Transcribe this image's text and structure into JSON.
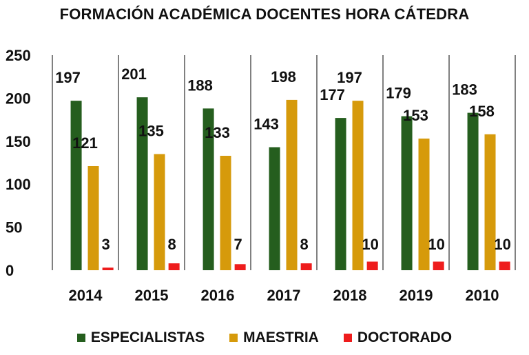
{
  "chart_data": {
    "type": "bar",
    "title": "FORMACIÓN ACADÉMICA DOCENTES HORA CÁTEDRA",
    "categories": [
      "2014",
      "2015",
      "2016",
      "2017",
      "2018",
      "2019",
      "2010"
    ],
    "series": [
      {
        "name": "ESPECIALISTAS",
        "color": "#255e1e",
        "values": [
          197,
          201,
          188,
          143,
          177,
          179,
          183
        ]
      },
      {
        "name": "MAESTRIA",
        "color": "#d69a0b",
        "values": [
          121,
          135,
          133,
          198,
          197,
          153,
          158
        ]
      },
      {
        "name": "DOCTORADO",
        "color": "#ee1c1c",
        "values": [
          3,
          8,
          7,
          8,
          10,
          10,
          10
        ]
      }
    ],
    "yticks": [
      "0",
      "50",
      "100",
      "150",
      "200",
      "250"
    ],
    "ylim": [
      0,
      250
    ],
    "grid": "vertical separators between categories",
    "legend": "bottom"
  }
}
